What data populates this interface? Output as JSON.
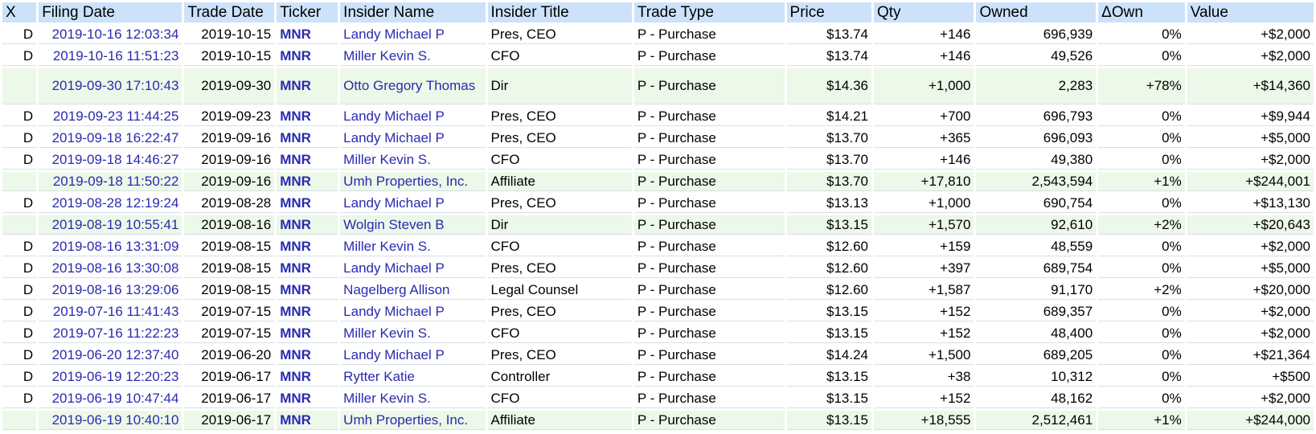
{
  "headers": [
    "X",
    "Filing Date",
    "Trade Date",
    "Ticker",
    "Insider Name",
    "Insider Title",
    "Trade Type",
    "Price",
    "Qty",
    "Owned",
    "ΔOwn",
    "Value"
  ],
  "rows": [
    {
      "x": "D",
      "filing": "2019-10-16 12:03:34",
      "trade": "2019-10-15",
      "ticker": "MNR",
      "name": "Landy Michael P",
      "title": "Pres, CEO",
      "type": "P - Purchase",
      "price": "$13.74",
      "qty": "+146",
      "owned": "696,939",
      "down": "0%",
      "value": "+$2,000"
    },
    {
      "x": "D",
      "filing": "2019-10-16 11:51:23",
      "trade": "2019-10-15",
      "ticker": "MNR",
      "name": "Miller Kevin S.",
      "title": "CFO",
      "type": "P - Purchase",
      "price": "$13.74",
      "qty": "+146",
      "owned": "49,526",
      "down": "0%",
      "value": "+$2,000"
    },
    {
      "x": "",
      "filing": "2019-09-30 17:10:43",
      "trade": "2019-09-30",
      "ticker": "MNR",
      "name": "Otto Gregory Thomas",
      "title": "Dir",
      "type": "P - Purchase",
      "price": "$14.36",
      "qty": "+1,000",
      "owned": "2,283",
      "down": "+78%",
      "value": "+$14,360"
    },
    {
      "x": "D",
      "filing": "2019-09-23 11:44:25",
      "trade": "2019-09-23",
      "ticker": "MNR",
      "name": "Landy Michael P",
      "title": "Pres, CEO",
      "type": "P - Purchase",
      "price": "$14.21",
      "qty": "+700",
      "owned": "696,793",
      "down": "0%",
      "value": "+$9,944"
    },
    {
      "x": "D",
      "filing": "2019-09-18 16:22:47",
      "trade": "2019-09-16",
      "ticker": "MNR",
      "name": "Landy Michael P",
      "title": "Pres, CEO",
      "type": "P - Purchase",
      "price": "$13.70",
      "qty": "+365",
      "owned": "696,093",
      "down": "0%",
      "value": "+$5,000"
    },
    {
      "x": "D",
      "filing": "2019-09-18 14:46:27",
      "trade": "2019-09-16",
      "ticker": "MNR",
      "name": "Miller Kevin S.",
      "title": "CFO",
      "type": "P - Purchase",
      "price": "$13.70",
      "qty": "+146",
      "owned": "49,380",
      "down": "0%",
      "value": "+$2,000"
    },
    {
      "x": "",
      "filing": "2019-09-18 11:50:22",
      "trade": "2019-09-16",
      "ticker": "MNR",
      "name": "Umh Properties, Inc.",
      "title": "Affiliate",
      "type": "P - Purchase",
      "price": "$13.70",
      "qty": "+17,810",
      "owned": "2,543,594",
      "down": "+1%",
      "value": "+$244,001"
    },
    {
      "x": "D",
      "filing": "2019-08-28 12:19:24",
      "trade": "2019-08-28",
      "ticker": "MNR",
      "name": "Landy Michael P",
      "title": "Pres, CEO",
      "type": "P - Purchase",
      "price": "$13.13",
      "qty": "+1,000",
      "owned": "690,754",
      "down": "0%",
      "value": "+$13,130"
    },
    {
      "x": "",
      "filing": "2019-08-19 10:55:41",
      "trade": "2019-08-16",
      "ticker": "MNR",
      "name": "Wolgin Steven B",
      "title": "Dir",
      "type": "P - Purchase",
      "price": "$13.15",
      "qty": "+1,570",
      "owned": "92,610",
      "down": "+2%",
      "value": "+$20,643"
    },
    {
      "x": "D",
      "filing": "2019-08-16 13:31:09",
      "trade": "2019-08-15",
      "ticker": "MNR",
      "name": "Miller Kevin S.",
      "title": "CFO",
      "type": "P - Purchase",
      "price": "$12.60",
      "qty": "+159",
      "owned": "48,559",
      "down": "0%",
      "value": "+$2,000"
    },
    {
      "x": "D",
      "filing": "2019-08-16 13:30:08",
      "trade": "2019-08-15",
      "ticker": "MNR",
      "name": "Landy Michael P",
      "title": "Pres, CEO",
      "type": "P - Purchase",
      "price": "$12.60",
      "qty": "+397",
      "owned": "689,754",
      "down": "0%",
      "value": "+$5,000"
    },
    {
      "x": "D",
      "filing": "2019-08-16 13:29:06",
      "trade": "2019-08-15",
      "ticker": "MNR",
      "name": "Nagelberg Allison",
      "title": "Legal Counsel",
      "type": "P - Purchase",
      "price": "$12.60",
      "qty": "+1,587",
      "owned": "91,170",
      "down": "+2%",
      "value": "+$20,000"
    },
    {
      "x": "D",
      "filing": "2019-07-16 11:41:43",
      "trade": "2019-07-15",
      "ticker": "MNR",
      "name": "Landy Michael P",
      "title": "Pres, CEO",
      "type": "P - Purchase",
      "price": "$13.15",
      "qty": "+152",
      "owned": "689,357",
      "down": "0%",
      "value": "+$2,000"
    },
    {
      "x": "D",
      "filing": "2019-07-16 11:22:23",
      "trade": "2019-07-15",
      "ticker": "MNR",
      "name": "Miller Kevin S.",
      "title": "CFO",
      "type": "P - Purchase",
      "price": "$13.15",
      "qty": "+152",
      "owned": "48,400",
      "down": "0%",
      "value": "+$2,000"
    },
    {
      "x": "D",
      "filing": "2019-06-20 12:37:40",
      "trade": "2019-06-20",
      "ticker": "MNR",
      "name": "Landy Michael P",
      "title": "Pres, CEO",
      "type": "P - Purchase",
      "price": "$14.24",
      "qty": "+1,500",
      "owned": "689,205",
      "down": "0%",
      "value": "+$21,364"
    },
    {
      "x": "D",
      "filing": "2019-06-19 12:20:23",
      "trade": "2019-06-17",
      "ticker": "MNR",
      "name": "Rytter Katie",
      "title": "Controller",
      "type": "P - Purchase",
      "price": "$13.15",
      "qty": "+38",
      "owned": "10,312",
      "down": "0%",
      "value": "+$500"
    },
    {
      "x": "D",
      "filing": "2019-06-19 10:47:44",
      "trade": "2019-06-17",
      "ticker": "MNR",
      "name": "Miller Kevin S.",
      "title": "CFO",
      "type": "P - Purchase",
      "price": "$13.15",
      "qty": "+152",
      "owned": "48,162",
      "down": "0%",
      "value": "+$2,000"
    },
    {
      "x": "",
      "filing": "2019-06-19 10:40:10",
      "trade": "2019-06-17",
      "ticker": "MNR",
      "name": "Umh Properties, Inc.",
      "title": "Affiliate",
      "type": "P - Purchase",
      "price": "$13.15",
      "qty": "+18,555",
      "owned": "2,512,461",
      "down": "+1%",
      "value": "+$244,000"
    }
  ],
  "highlight_rows": [
    2,
    6,
    8,
    17
  ],
  "colors": {
    "header_bg": "#cce2fb",
    "highlight_bg": "#ecf8e8",
    "link": "#2a2ab0"
  }
}
